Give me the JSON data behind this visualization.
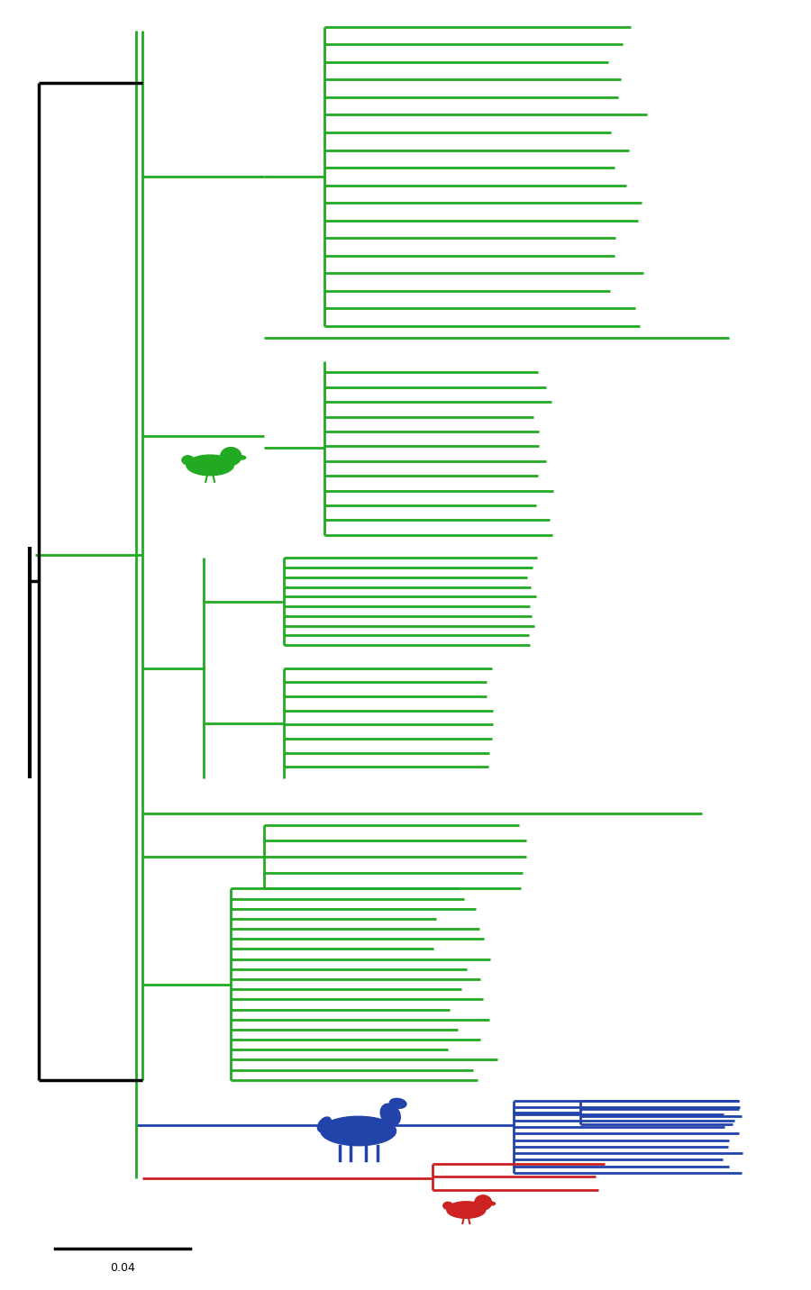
{
  "bg_color": "#ffffff",
  "green_color": "#22aa22",
  "blue_color": "#2244aa",
  "red_color": "#cc2222",
  "black_color": "#000000",
  "scale_bar_value": 0.04,
  "scale_bar_label": "0.04",
  "lw": 2.0
}
